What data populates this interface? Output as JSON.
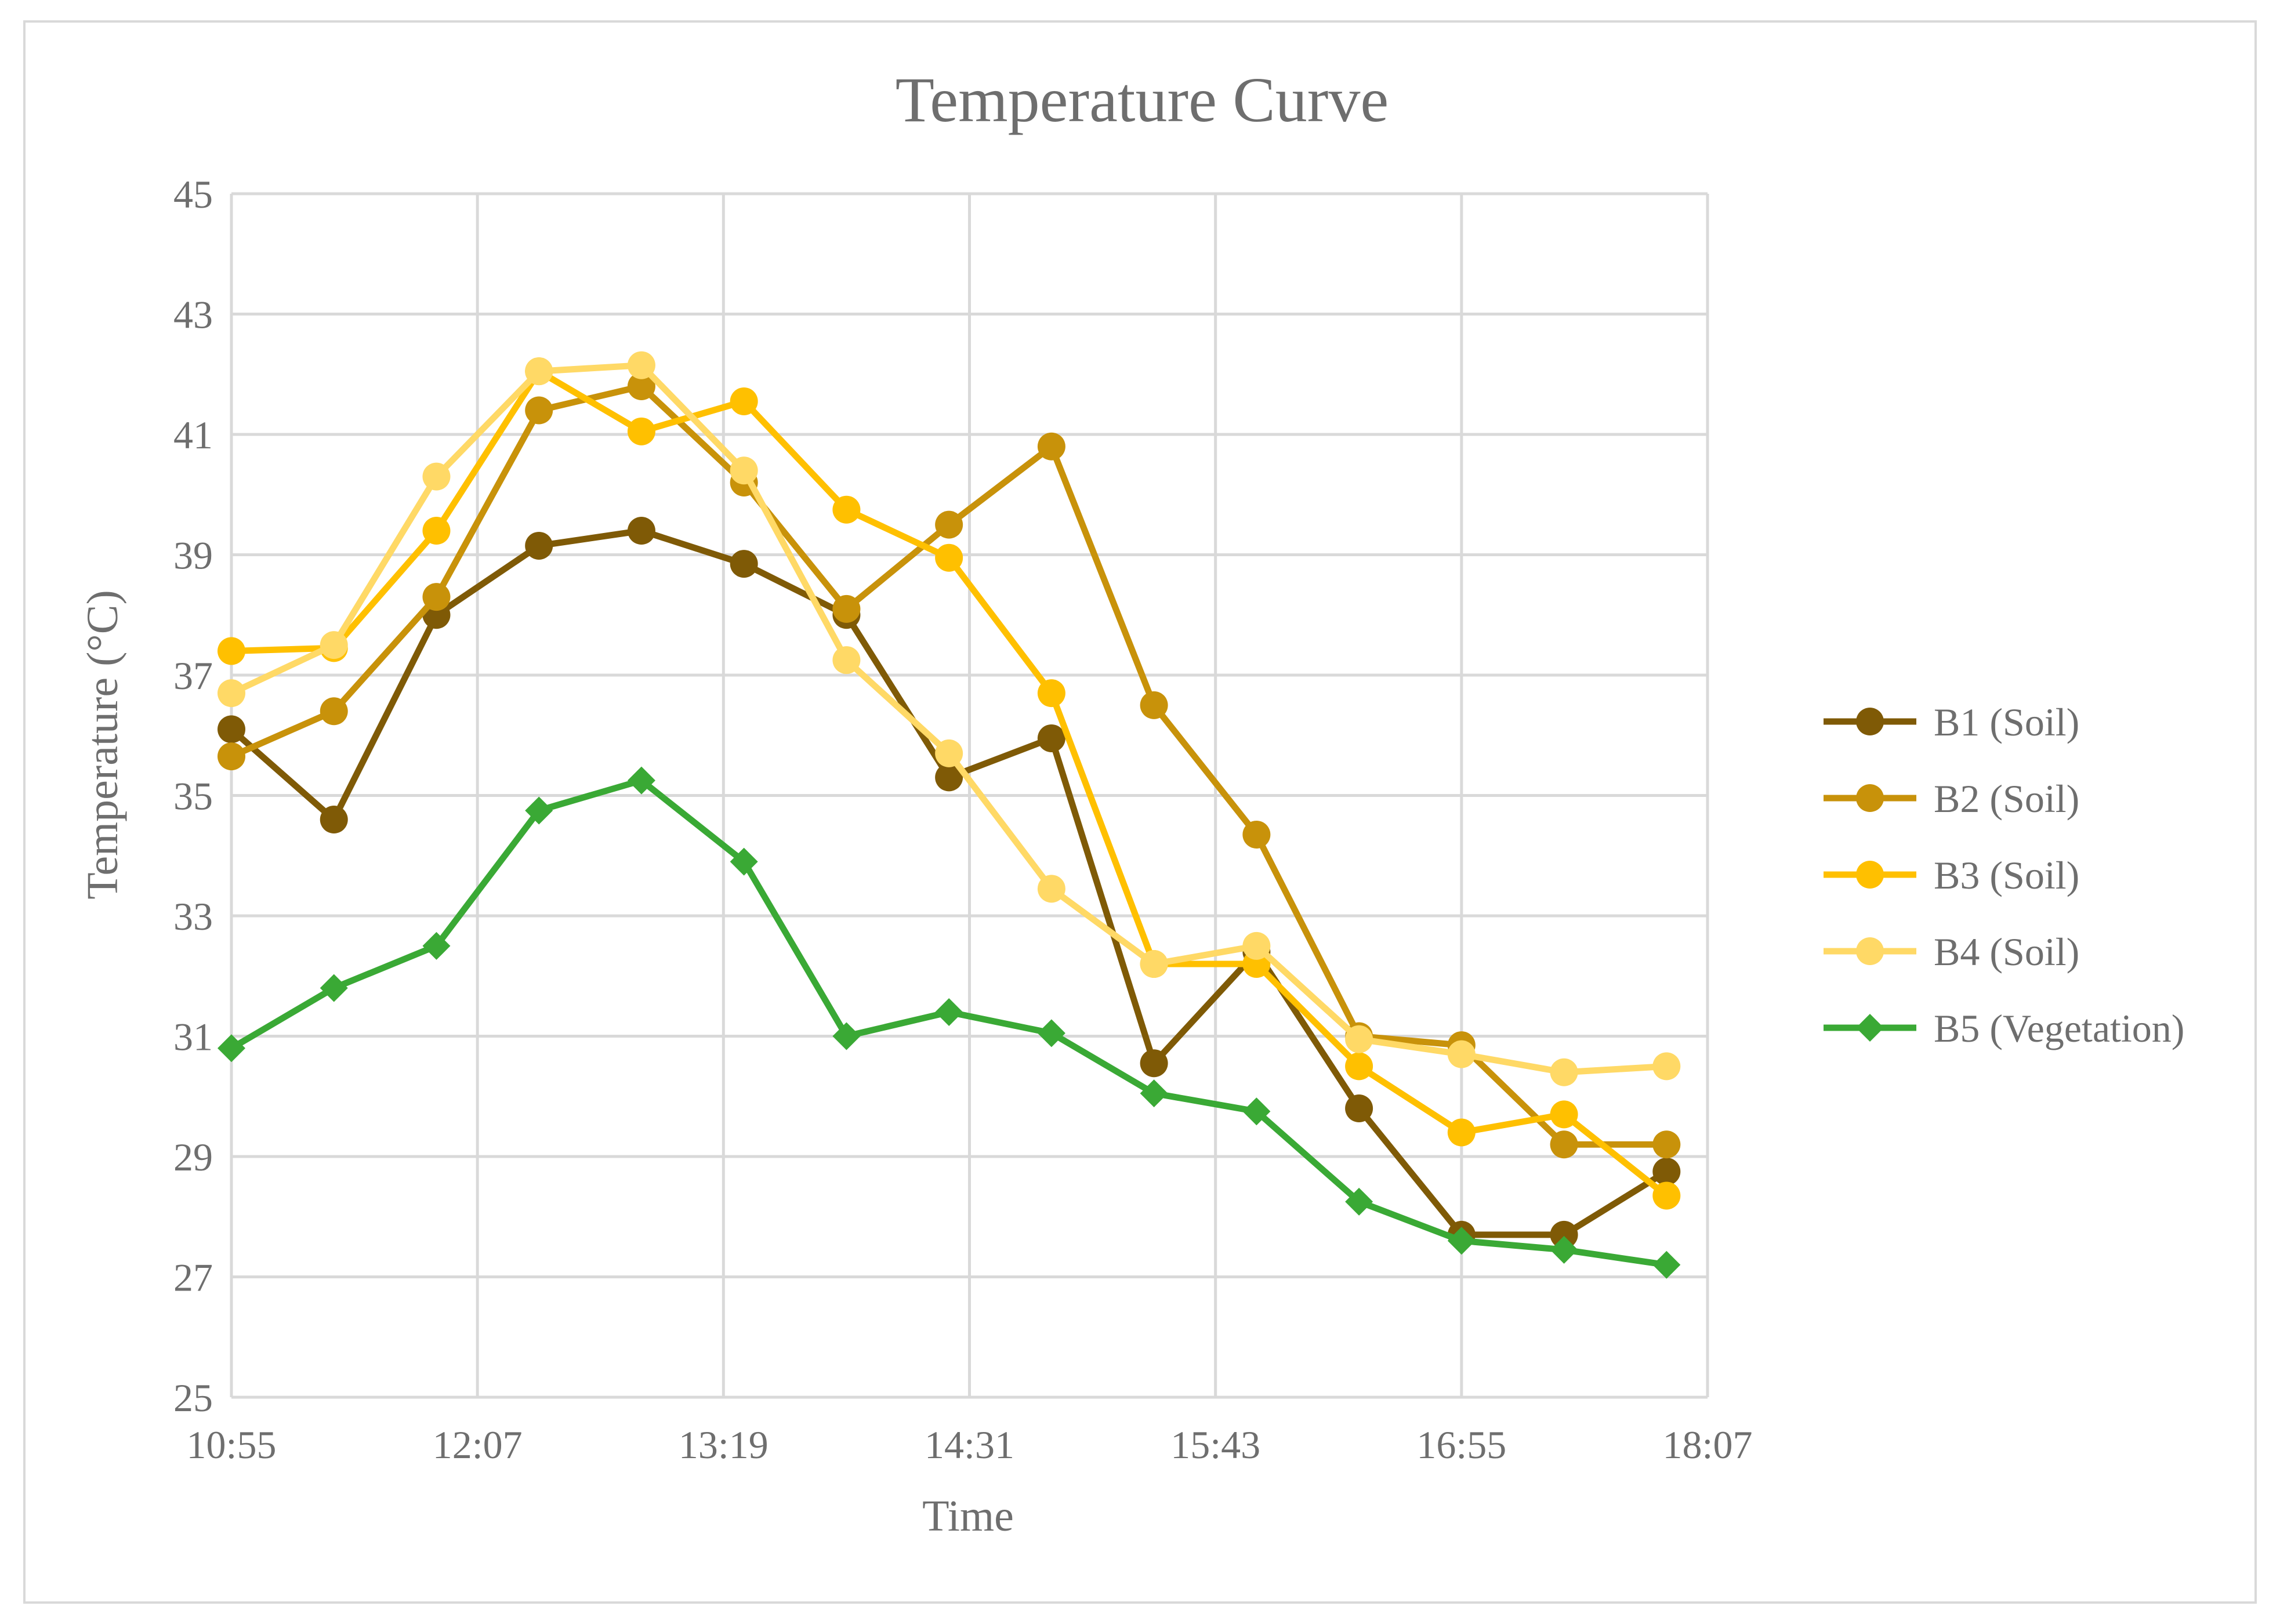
{
  "chart_data": {
    "type": "line",
    "title": "Temperature Curve",
    "xlabel": "Time",
    "ylabel": "Temperature (°C)",
    "ylim": [
      25,
      45
    ],
    "yticks": [
      25,
      27,
      29,
      31,
      33,
      35,
      37,
      39,
      41,
      43,
      45
    ],
    "xlim_minutes": [
      655,
      1087
    ],
    "xtick_labels": [
      "10:55",
      "12:07",
      "13:19",
      "14:31",
      "15:43",
      "16:55",
      "18:07"
    ],
    "xtick_minutes": [
      655,
      727,
      799,
      871,
      943,
      1015,
      1087
    ],
    "grid": true,
    "legend_position": "right",
    "x_minutes": [
      655,
      685,
      715,
      745,
      775,
      805,
      835,
      865,
      895,
      925,
      955,
      985,
      1015,
      1045,
      1075
    ],
    "series": [
      {
        "name": "B1 (Soil)",
        "color": "#7f5a06",
        "marker": "circle",
        "values": [
          36.1,
          34.6,
          38.0,
          39.15,
          39.4,
          38.85,
          38.0,
          35.3,
          35.95,
          30.55,
          32.4,
          29.8,
          27.7,
          27.7,
          28.75
        ]
      },
      {
        "name": "B2 (Soil)",
        "color": "#c8920a",
        "marker": "circle",
        "values": [
          35.65,
          36.4,
          38.3,
          41.4,
          41.8,
          40.2,
          38.1,
          39.5,
          40.8,
          36.5,
          34.35,
          31.0,
          30.85,
          29.2,
          29.2
        ]
      },
      {
        "name": "B3 (Soil)",
        "color": "#ffc000",
        "marker": "circle",
        "values": [
          37.4,
          37.45,
          39.4,
          42.05,
          41.05,
          41.55,
          39.75,
          38.95,
          36.7,
          32.2,
          32.2,
          30.5,
          29.4,
          29.7,
          28.35
        ]
      },
      {
        "name": "B4 (Soil)",
        "color": "#ffd966",
        "marker": "circle",
        "values": [
          36.7,
          37.5,
          40.3,
          42.05,
          42.15,
          40.4,
          37.25,
          35.7,
          33.45,
          32.2,
          32.5,
          30.95,
          30.7,
          30.4,
          30.5
        ]
      },
      {
        "name": "B5 (Vegetation)",
        "color": "#3aa935",
        "marker": "diamond",
        "values": [
          30.8,
          31.8,
          32.5,
          34.75,
          35.25,
          33.9,
          31.0,
          31.4,
          31.05,
          30.05,
          29.75,
          28.25,
          27.6,
          27.45,
          27.2
        ]
      }
    ]
  }
}
